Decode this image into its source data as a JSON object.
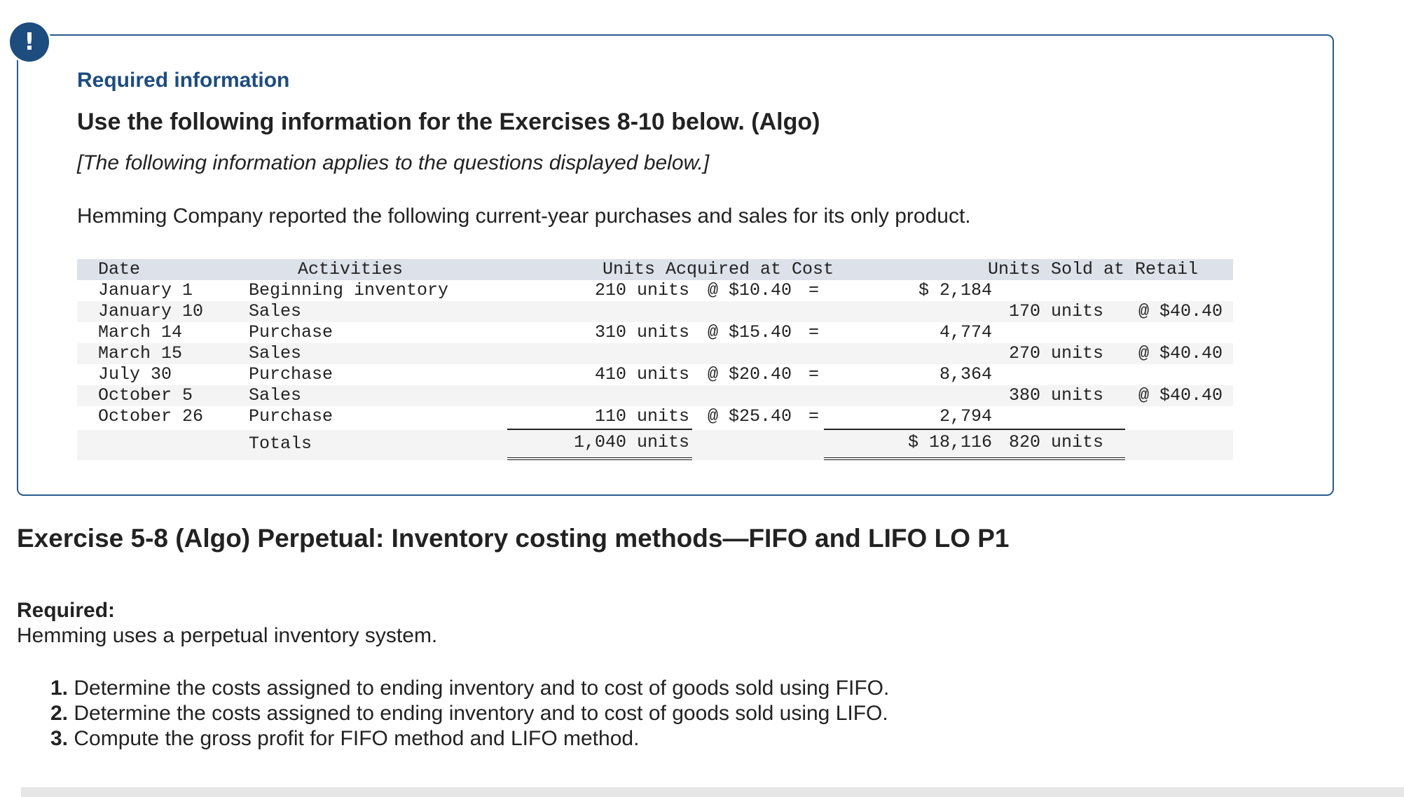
{
  "alert": {
    "icon": "exclamation-icon",
    "glyph": "!",
    "color": "#1d4c7f"
  },
  "info": {
    "label": "Required information",
    "heading": "Use the following information for the Exercises 8-10 below. (Algo)",
    "note": "[The following information applies to the questions displayed below.]",
    "intro": "Hemming Company reported the following current-year purchases and sales for its only product."
  },
  "table": {
    "headers": {
      "date": "Date",
      "activities": "Activities",
      "acquired": "Units Acquired at Cost",
      "sold": "Units Sold at Retail"
    },
    "rows": [
      {
        "date": "January 1",
        "activity": "Beginning inventory",
        "acq_units": "210 units",
        "acq_cost": "@ $10.40",
        "eq": "=",
        "acq_total": "$ 2,184",
        "sold_units": "",
        "sold_price": ""
      },
      {
        "date": "January 10",
        "activity": "Sales",
        "acq_units": "",
        "acq_cost": "",
        "eq": "",
        "acq_total": "",
        "sold_units": "170 units",
        "sold_price": "@ $40.40"
      },
      {
        "date": "March 14",
        "activity": "Purchase",
        "acq_units": "310 units",
        "acq_cost": "@ $15.40",
        "eq": "=",
        "acq_total": "4,774",
        "sold_units": "",
        "sold_price": ""
      },
      {
        "date": "March 15",
        "activity": "Sales",
        "acq_units": "",
        "acq_cost": "",
        "eq": "",
        "acq_total": "",
        "sold_units": "270 units",
        "sold_price": "@ $40.40"
      },
      {
        "date": "July 30",
        "activity": "Purchase",
        "acq_units": "410 units",
        "acq_cost": "@ $20.40",
        "eq": "=",
        "acq_total": "8,364",
        "sold_units": "",
        "sold_price": ""
      },
      {
        "date": "October 5",
        "activity": "Sales",
        "acq_units": "",
        "acq_cost": "",
        "eq": "",
        "acq_total": "",
        "sold_units": "380 units",
        "sold_price": "@ $40.40"
      },
      {
        "date": "October 26",
        "activity": "Purchase",
        "acq_units": "110 units",
        "acq_cost": "@ $25.40",
        "eq": "=",
        "acq_total": "2,794",
        "sold_units": "",
        "sold_price": ""
      }
    ],
    "totals": {
      "label": "Totals",
      "acq_units": "1,040 units",
      "acq_total": "$ 18,116",
      "sold_units": "820 units"
    }
  },
  "exercise": {
    "title": "Exercise 5-8 (Algo) Perpetual: Inventory costing methods—FIFO and LIFO LO P1",
    "required_label": "Required:",
    "required_text": "Hemming uses a perpetual inventory system.",
    "steps": [
      {
        "num": "1.",
        "text": "Determine the costs assigned to ending inventory and to cost of goods sold using FIFO."
      },
      {
        "num": "2.",
        "text": "Determine the costs assigned to ending inventory and to cost of goods sold using LIFO."
      },
      {
        "num": "3.",
        "text": "Compute the gross profit for FIFO method and LIFO method."
      }
    ]
  }
}
